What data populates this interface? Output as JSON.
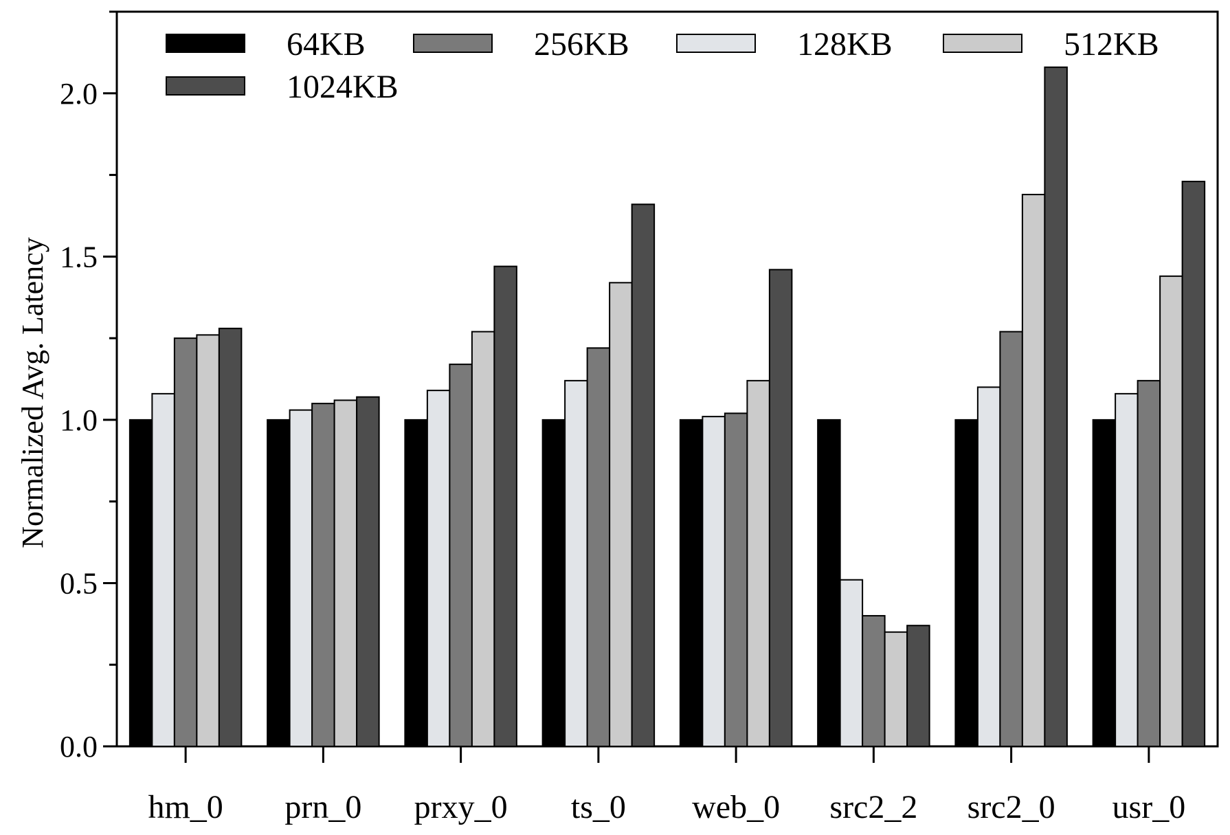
{
  "chart_data": {
    "type": "bar",
    "title": "",
    "xlabel": "",
    "ylabel": "Normalized Avg. Latency",
    "ylim": [
      0,
      2.25
    ],
    "yticks": [
      0.0,
      0.5,
      1.0,
      1.5,
      2.0
    ],
    "ytick_labels": [
      "0.0",
      "0.5",
      "1.0",
      "1.5",
      "2.0"
    ],
    "grid": false,
    "legend_position": "top",
    "categories": [
      "hm_0",
      "prn_0",
      "prxy_0",
      "ts_0",
      "web_0",
      "src2_2",
      "src2_0",
      "usr_0"
    ],
    "series": [
      {
        "name": "64KB",
        "color": "#000000",
        "values": [
          1.0,
          1.0,
          1.0,
          1.0,
          1.0,
          1.0,
          1.0,
          1.0
        ]
      },
      {
        "name": "128KB",
        "color": "#e1e4e8",
        "values": [
          1.08,
          1.03,
          1.09,
          1.12,
          1.01,
          0.51,
          1.1,
          1.08
        ]
      },
      {
        "name": "256KB",
        "color": "#7a7a7a",
        "values": [
          1.25,
          1.05,
          1.17,
          1.22,
          1.02,
          0.4,
          1.27,
          1.12
        ]
      },
      {
        "name": "512KB",
        "color": "#cbcbcb",
        "values": [
          1.26,
          1.06,
          1.27,
          1.42,
          1.12,
          0.35,
          1.69,
          1.44
        ]
      },
      {
        "name": "1024KB",
        "color": "#4d4d4d",
        "values": [
          1.28,
          1.07,
          1.47,
          1.66,
          1.46,
          0.37,
          2.08,
          1.73
        ]
      }
    ],
    "legend_order": [
      "64KB",
      "256KB",
      "128KB",
      "512KB",
      "1024KB"
    ]
  }
}
